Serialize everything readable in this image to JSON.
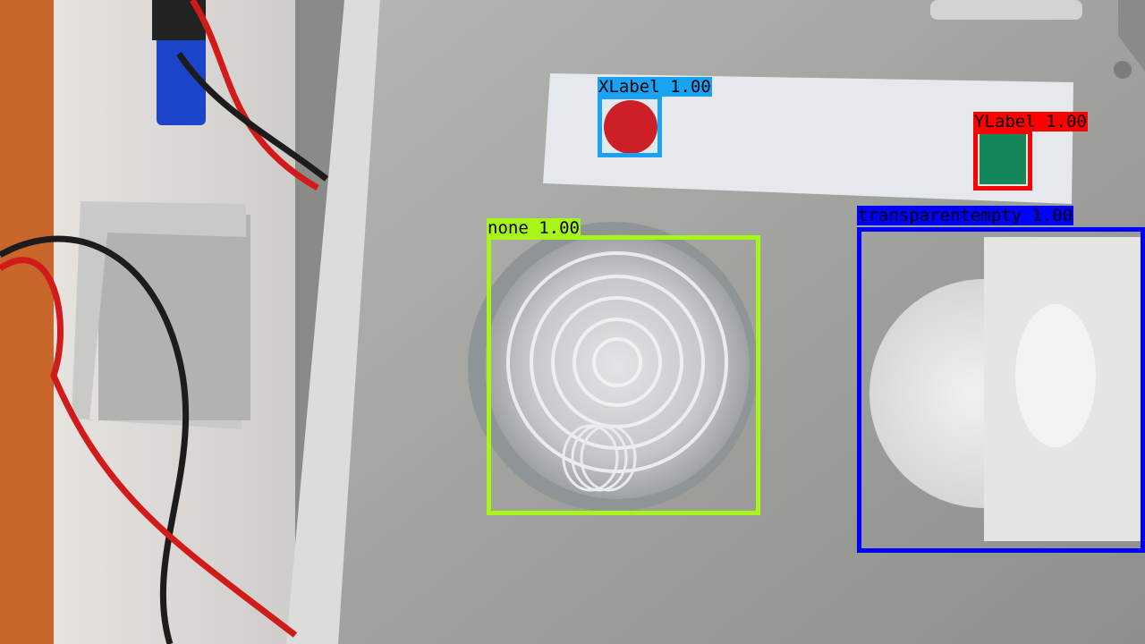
{
  "detections": [
    {
      "label": "XLabel",
      "score": "1.00",
      "color": "#1aa3f5"
    },
    {
      "label": "YLabel",
      "score": "1.00",
      "color": "#ff0000"
    },
    {
      "label": "none",
      "score": "1.00",
      "color": "#a8f51a"
    },
    {
      "label": "transparentempty",
      "score": "1.00",
      "color": "#0000ff"
    }
  ]
}
